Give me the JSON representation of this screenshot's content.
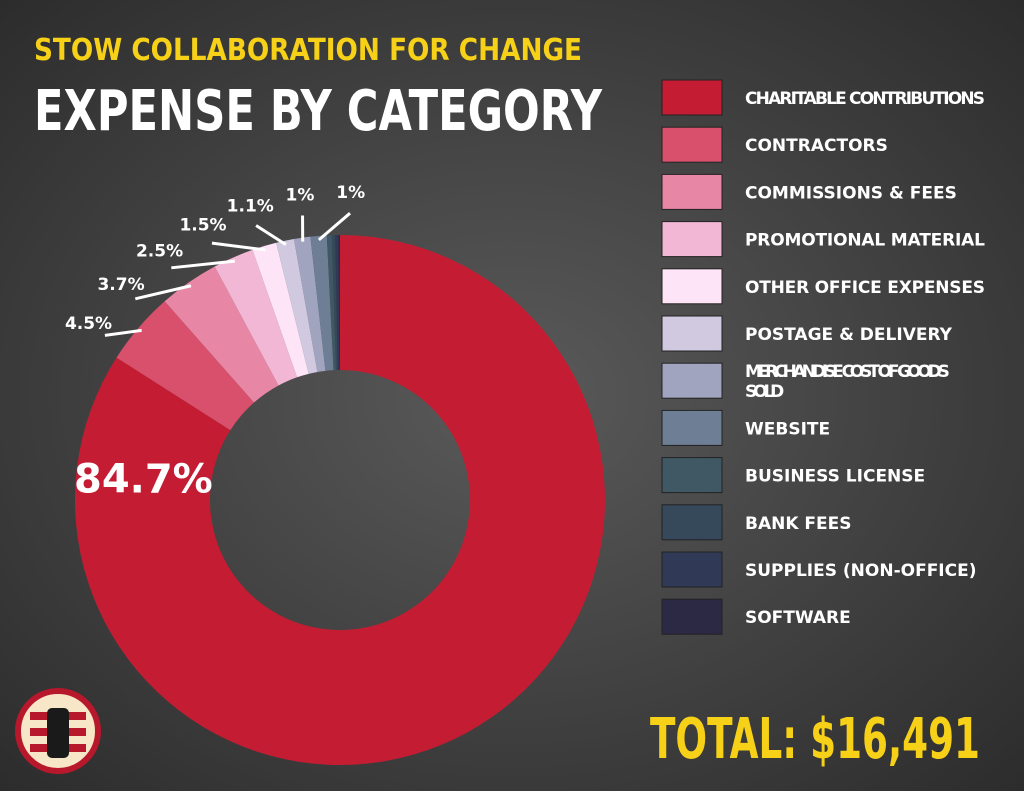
{
  "chart_data": {
    "type": "donut",
    "subtitle": "STOW COLLABORATION FOR CHANGE",
    "title": "EXPENSE BY CATEGORY",
    "categories": [
      "CHARITABLE CONTRIBUTIONS",
      "CONTRACTORS",
      "COMMISSIONS & FEES",
      "PROMOTIONAL MATERIAL",
      "OTHER OFFICE EXPENSES",
      "POSTAGE & DELIVERY",
      "MERCHANDISE COST OF GOODS SOLD",
      "WEBSITE",
      "BUSINESS LICENSE",
      "BANK FEES",
      "SUPPLIES (NON-OFFICE)",
      "SOFTWARE"
    ],
    "values": [
      84.7,
      4.5,
      3.7,
      2.5,
      1.5,
      1.1,
      1,
      1,
      0.3,
      0.2,
      0.2,
      0.1
    ],
    "value_labels": [
      "84.7%",
      "4.5%",
      "3.7%",
      "2.5%",
      "1.5%",
      "1.1%",
      "1%",
      "1%",
      null,
      null,
      null,
      null
    ],
    "colors": [
      "#c41d33",
      "#d9506c",
      "#e886a6",
      "#f2b7d4",
      "#fde4f6",
      "#d1c9e0",
      "#a1a4bf",
      "#6d7e95",
      "#405864",
      "#35495b",
      "#303955",
      "#2c2944"
    ],
    "total_label": "TOTAL: $16,491"
  }
}
